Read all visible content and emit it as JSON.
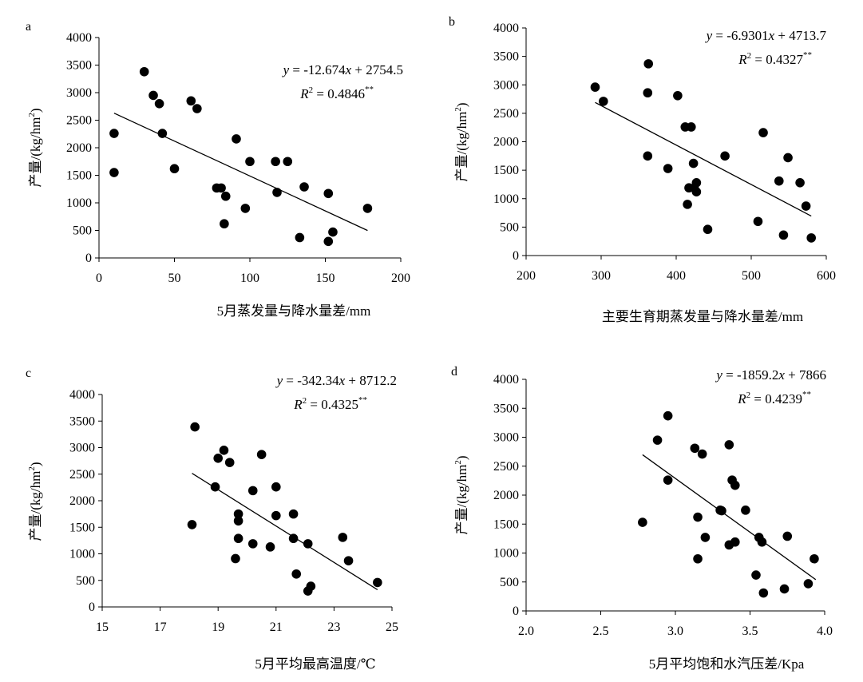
{
  "chart_data": [
    {
      "type": "scatter",
      "panel_label": "a",
      "xlabel": "5月蒸发量与降水量差/mm",
      "ylabel_main": "产量/(kg/hm",
      "ylabel_sup": "2",
      "ylabel_end": ")",
      "xlim": [
        0,
        200
      ],
      "ylim": [
        0,
        4000
      ],
      "xticks": [
        0,
        50,
        100,
        150,
        200
      ],
      "yticks": [
        0,
        500,
        1000,
        1500,
        2000,
        2500,
        3000,
        3500,
        4000
      ],
      "equation": {
        "lhs": "y",
        "rhs_a": " = -12.674",
        "rhs_x": "x",
        "rhs_b": " + 2754.5"
      },
      "r2": {
        "label": "R",
        "sup": "2",
        "value": " = 0.4846",
        "sig": "**"
      },
      "trendline": {
        "slope": -12.674,
        "intercept": 2754.5,
        "x_range": [
          10,
          178
        ]
      },
      "points": [
        {
          "x": 10,
          "y": 2260
        },
        {
          "x": 10,
          "y": 1550
        },
        {
          "x": 30,
          "y": 3380
        },
        {
          "x": 36,
          "y": 2950
        },
        {
          "x": 40,
          "y": 2800
        },
        {
          "x": 42,
          "y": 2260
        },
        {
          "x": 50,
          "y": 1620
        },
        {
          "x": 61,
          "y": 2850
        },
        {
          "x": 65,
          "y": 2710
        },
        {
          "x": 78,
          "y": 1270
        },
        {
          "x": 81,
          "y": 1270
        },
        {
          "x": 84,
          "y": 1120
        },
        {
          "x": 83,
          "y": 620
        },
        {
          "x": 91,
          "y": 2160
        },
        {
          "x": 97,
          "y": 900
        },
        {
          "x": 100,
          "y": 1750
        },
        {
          "x": 117,
          "y": 1750
        },
        {
          "x": 118,
          "y": 1190
        },
        {
          "x": 125,
          "y": 1750
        },
        {
          "x": 133,
          "y": 370
        },
        {
          "x": 136,
          "y": 1290
        },
        {
          "x": 152,
          "y": 1170
        },
        {
          "x": 152,
          "y": 300
        },
        {
          "x": 155,
          "y": 470
        },
        {
          "x": 178,
          "y": 900
        }
      ]
    },
    {
      "type": "scatter",
      "panel_label": "b",
      "xlabel": "主要生育期蒸发量与降水量差/mm",
      "ylabel_main": "产量/(kg/hm",
      "ylabel_sup": "2",
      "ylabel_end": ")",
      "xlim": [
        200,
        600
      ],
      "ylim": [
        0,
        4000
      ],
      "xticks": [
        200,
        300,
        400,
        500,
        600
      ],
      "yticks": [
        0,
        500,
        1000,
        1500,
        2000,
        2500,
        3000,
        3500,
        4000
      ],
      "equation": {
        "lhs": "y",
        "rhs_a": " = -6.9301",
        "rhs_x": "x",
        "rhs_b": " + 4713.7"
      },
      "r2": {
        "label": "R",
        "sup": "2",
        "value": " = 0.4327",
        "sig": "**"
      },
      "trendline": {
        "slope": -6.9301,
        "intercept": 4713.7,
        "x_range": [
          292,
          580
        ]
      },
      "points": [
        {
          "x": 292,
          "y": 2960
        },
        {
          "x": 303,
          "y": 2710
        },
        {
          "x": 362,
          "y": 2860
        },
        {
          "x": 363,
          "y": 3370
        },
        {
          "x": 362,
          "y": 1750
        },
        {
          "x": 389,
          "y": 1530
        },
        {
          "x": 402,
          "y": 2810
        },
        {
          "x": 412,
          "y": 2260
        },
        {
          "x": 420,
          "y": 2260
        },
        {
          "x": 423,
          "y": 1620
        },
        {
          "x": 417,
          "y": 1190
        },
        {
          "x": 424,
          "y": 1190
        },
        {
          "x": 427,
          "y": 1280
        },
        {
          "x": 427,
          "y": 1120
        },
        {
          "x": 415,
          "y": 900
        },
        {
          "x": 442,
          "y": 460
        },
        {
          "x": 465,
          "y": 1750
        },
        {
          "x": 509,
          "y": 600
        },
        {
          "x": 516,
          "y": 2160
        },
        {
          "x": 537,
          "y": 1310
        },
        {
          "x": 543,
          "y": 360
        },
        {
          "x": 549,
          "y": 1720
        },
        {
          "x": 565,
          "y": 1280
        },
        {
          "x": 573,
          "y": 870
        },
        {
          "x": 580,
          "y": 310
        }
      ]
    },
    {
      "type": "scatter",
      "panel_label": "c",
      "xlabel": "5月平均最高温度/℃",
      "ylabel_main": "产量/(kg/hm",
      "ylabel_sup": "2",
      "ylabel_end": ")",
      "xlim": [
        15,
        25
      ],
      "ylim": [
        0,
        4000
      ],
      "xticks": [
        15,
        17,
        19,
        21,
        23,
        25
      ],
      "yticks": [
        0,
        500,
        1000,
        1500,
        2000,
        2500,
        3000,
        3500,
        4000
      ],
      "equation": {
        "lhs": "y",
        "rhs_a": " = -342.34",
        "rhs_x": "x",
        "rhs_b": " + 8712.2"
      },
      "r2": {
        "label": "R",
        "sup": "2",
        "value": " = 0.4325",
        "sig": "**"
      },
      "trendline": {
        "slope": -342.34,
        "intercept": 8712.2,
        "x_range": [
          18.1,
          24.5
        ]
      },
      "points": [
        {
          "x": 18.1,
          "y": 1550
        },
        {
          "x": 18.2,
          "y": 3390
        },
        {
          "x": 18.9,
          "y": 2260
        },
        {
          "x": 19.0,
          "y": 2800
        },
        {
          "x": 19.2,
          "y": 2950
        },
        {
          "x": 19.4,
          "y": 2720
        },
        {
          "x": 19.6,
          "y": 910
        },
        {
          "x": 19.7,
          "y": 1750
        },
        {
          "x": 19.7,
          "y": 1290
        },
        {
          "x": 19.7,
          "y": 1620
        },
        {
          "x": 20.2,
          "y": 2190
        },
        {
          "x": 20.2,
          "y": 1190
        },
        {
          "x": 20.5,
          "y": 2870
        },
        {
          "x": 20.8,
          "y": 1130
        },
        {
          "x": 21.0,
          "y": 2260
        },
        {
          "x": 21.0,
          "y": 1720
        },
        {
          "x": 21.6,
          "y": 1750
        },
        {
          "x": 21.6,
          "y": 1290
        },
        {
          "x": 21.7,
          "y": 620
        },
        {
          "x": 22.1,
          "y": 1190
        },
        {
          "x": 22.1,
          "y": 300
        },
        {
          "x": 22.2,
          "y": 390
        },
        {
          "x": 23.3,
          "y": 1310
        },
        {
          "x": 23.5,
          "y": 870
        },
        {
          "x": 24.5,
          "y": 460
        }
      ]
    },
    {
      "type": "scatter",
      "panel_label": "d",
      "xlabel": "5月平均饱和水汽压差/Kpa",
      "ylabel_main": "产量/(kg/hm",
      "ylabel_sup": "2",
      "ylabel_end": ")",
      "xlim": [
        2.0,
        4.0
      ],
      "ylim": [
        0,
        4000
      ],
      "xticks": [
        "2.0",
        "2.5",
        "3.0",
        "3.5",
        "4.0"
      ],
      "yticks": [
        0,
        500,
        1000,
        1500,
        2000,
        2500,
        3000,
        3500,
        4000
      ],
      "equation": {
        "lhs": "y",
        "rhs_a": " = -1859.2",
        "rhs_x": "x",
        "rhs_b": " + 7866"
      },
      "r2": {
        "label": "R",
        "sup": "2",
        "value": " = 0.4239",
        "sig": "**"
      },
      "trendline": {
        "slope": -1859.2,
        "intercept": 7866,
        "x_range": [
          2.78,
          3.94
        ]
      },
      "points": [
        {
          "x": 2.78,
          "y": 1530
        },
        {
          "x": 2.88,
          "y": 2950
        },
        {
          "x": 2.95,
          "y": 3370
        },
        {
          "x": 2.95,
          "y": 2260
        },
        {
          "x": 3.13,
          "y": 2810
        },
        {
          "x": 3.15,
          "y": 1620
        },
        {
          "x": 3.15,
          "y": 900
        },
        {
          "x": 3.18,
          "y": 2710
        },
        {
          "x": 3.2,
          "y": 1270
        },
        {
          "x": 3.3,
          "y": 1740
        },
        {
          "x": 3.31,
          "y": 1730
        },
        {
          "x": 3.36,
          "y": 2870
        },
        {
          "x": 3.36,
          "y": 1140
        },
        {
          "x": 3.38,
          "y": 2260
        },
        {
          "x": 3.4,
          "y": 2170
        },
        {
          "x": 3.4,
          "y": 1190
        },
        {
          "x": 3.47,
          "y": 1740
        },
        {
          "x": 3.54,
          "y": 620
        },
        {
          "x": 3.56,
          "y": 1270
        },
        {
          "x": 3.58,
          "y": 1190
        },
        {
          "x": 3.59,
          "y": 310
        },
        {
          "x": 3.73,
          "y": 380
        },
        {
          "x": 3.75,
          "y": 1290
        },
        {
          "x": 3.89,
          "y": 470
        },
        {
          "x": 3.93,
          "y": 900
        }
      ]
    }
  ]
}
